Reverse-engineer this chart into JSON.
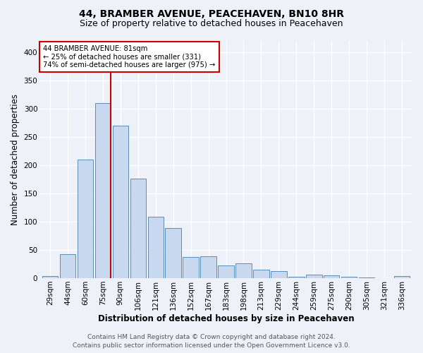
{
  "title": "44, BRAMBER AVENUE, PEACEHAVEN, BN10 8HR",
  "subtitle": "Size of property relative to detached houses in Peacehaven",
  "xlabel": "Distribution of detached houses by size in Peacehaven",
  "ylabel": "Number of detached properties",
  "bar_values": [
    4,
    43,
    210,
    310,
    270,
    176,
    109,
    89,
    37,
    39,
    23,
    26,
    15,
    12,
    3,
    6,
    5,
    3,
    1,
    0,
    4
  ],
  "bar_labels": [
    "29sqm",
    "44sqm",
    "60sqm",
    "75sqm",
    "90sqm",
    "106sqm",
    "121sqm",
    "136sqm",
    "152sqm",
    "167sqm",
    "183sqm",
    "198sqm",
    "213sqm",
    "229sqm",
    "244sqm",
    "259sqm",
    "275sqm",
    "290sqm",
    "305sqm",
    "321sqm",
    "336sqm"
  ],
  "bar_color": "#c8d8ee",
  "bar_edge_color": "#5b8db8",
  "vline_x": 3.43,
  "vline_color": "#cc0000",
  "annotation_text": "44 BRAMBER AVENUE: 81sqm\n← 25% of detached houses are smaller (331)\n74% of semi-detached houses are larger (975) →",
  "annotation_box_color": "white",
  "annotation_box_edge": "#cc0000",
  "ylim": [
    0,
    420
  ],
  "yticks": [
    0,
    50,
    100,
    150,
    200,
    250,
    300,
    350,
    400
  ],
  "footer_line1": "Contains HM Land Registry data © Crown copyright and database right 2024.",
  "footer_line2": "Contains public sector information licensed under the Open Government Licence v3.0.",
  "bg_color": "#eef2f8",
  "plot_bg_color": "#eef2f8",
  "title_fontsize": 10,
  "subtitle_fontsize": 9,
  "axis_label_fontsize": 8.5,
  "tick_fontsize": 7.5,
  "footer_fontsize": 6.5
}
